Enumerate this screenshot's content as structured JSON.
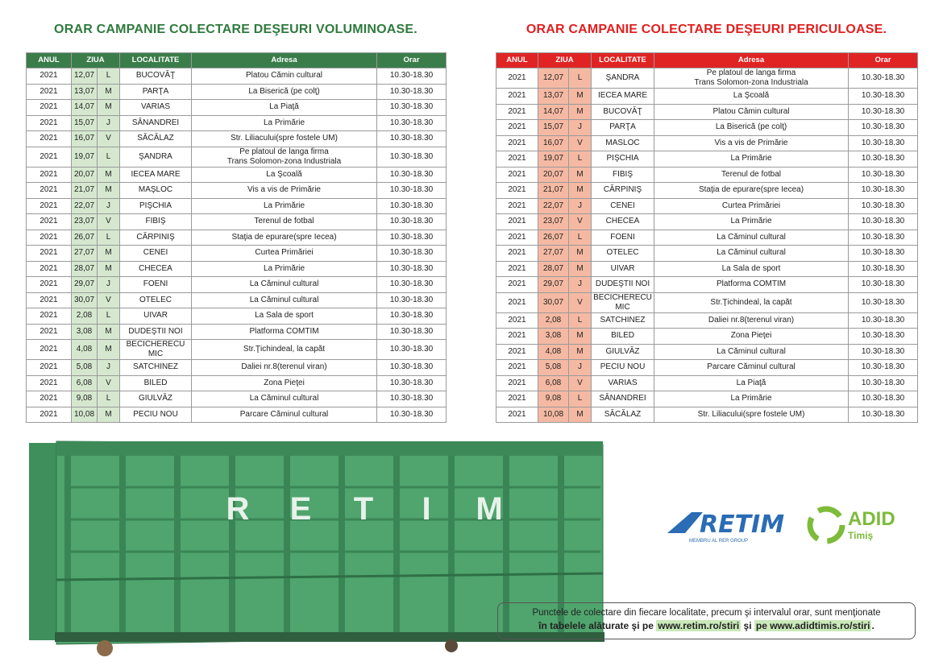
{
  "left": {
    "title": "ORAR CAMPANIE COLECTARE DEŞEURI VOLUMINOASE.",
    "headers": [
      "ANUL",
      "ZIUA",
      "LOCALITATE",
      "Adresa",
      "Orar"
    ],
    "rows": [
      [
        "2021",
        "12,07",
        "L",
        "BUCOVĂŢ",
        "Platou Cămin cultural",
        "10.30-18.30"
      ],
      [
        "2021",
        "13,07",
        "M",
        "PARŢA",
        "La Biserică (pe colţ)",
        "10.30-18.30"
      ],
      [
        "2021",
        "14,07",
        "M",
        "VARIAS",
        "La Piaţă",
        "10.30-18.30"
      ],
      [
        "2021",
        "15,07",
        "J",
        "SÂNANDREI",
        "La Primărie",
        "10.30-18.30"
      ],
      [
        "2021",
        "16,07",
        "V",
        "SĂCĂLAZ",
        "Str. Liliacului(spre fostele UM)",
        "10.30-18.30"
      ],
      [
        "2021",
        "19,07",
        "L",
        "ŞANDRA",
        "Pe platoul de langa firma\nTrans Solomon-zona Industriala",
        "10.30-18.30"
      ],
      [
        "2021",
        "20,07",
        "M",
        "IECEA MARE",
        "La Şcoală",
        "10.30-18.30"
      ],
      [
        "2021",
        "21,07",
        "M",
        "MAŞLOC",
        "Vis a vis de Primărie",
        "10.30-18.30"
      ],
      [
        "2021",
        "22,07",
        "J",
        "PIŞCHIA",
        "La Primărie",
        "10.30-18.30"
      ],
      [
        "2021",
        "23,07",
        "V",
        "FIBIŞ",
        "Terenul de fotbal",
        "10.30-18.30"
      ],
      [
        "2021",
        "26,07",
        "L",
        "CĂRPINIŞ",
        "Staţia de epurare(spre Iecea)",
        "10.30-18.30"
      ],
      [
        "2021",
        "27,07",
        "M",
        "CENEI",
        "Curtea Primăriei",
        "10.30-18.30"
      ],
      [
        "2021",
        "28,07",
        "M",
        "CHECEA",
        "La Primărie",
        "10.30-18.30"
      ],
      [
        "2021",
        "29,07",
        "J",
        "FOENI",
        "La Căminul cultural",
        "10.30-18.30"
      ],
      [
        "2021",
        "30,07",
        "V",
        "OTELEC",
        "La Căminul cultural",
        "10.30-18.30"
      ],
      [
        "2021",
        "2,08",
        "L",
        "UIVAR",
        "La Sala de sport",
        "10.30-18.30"
      ],
      [
        "2021",
        "3,08",
        "M",
        "DUDEŞTII NOI",
        "Platforma COMTIM",
        "10.30-18.30"
      ],
      [
        "2021",
        "4,08",
        "M",
        "BECICHERECU\nMIC",
        "Str.Ţichindeal, la capăt",
        "10.30-18.30"
      ],
      [
        "2021",
        "5,08",
        "J",
        "SATCHINEZ",
        "Daliei nr.8(terenul viran)",
        "10.30-18.30"
      ],
      [
        "2021",
        "6,08",
        "V",
        "BILED",
        "Zona Pieţei",
        "10.30-18.30"
      ],
      [
        "2021",
        "9,08",
        "L",
        "GIULVĂZ",
        "La Căminul cultural",
        "10.30-18.30"
      ],
      [
        "2021",
        "10,08",
        "M",
        "PECIU NOU",
        "Parcare Căminul cultural",
        "10.30-18.30"
      ]
    ]
  },
  "right": {
    "title": "ORAR CAMPANIE COLECTARE DEŞEURI PERICULOASE.",
    "headers": [
      "ANUL",
      "ZIUA",
      "LOCALITATE",
      "Adresa",
      "Orar"
    ],
    "rows": [
      [
        "2021",
        "12,07",
        "L",
        "ŞANDRA",
        "Pe platoul de langa firma\nTrans Solomon-zona Industriala",
        "10.30-18.30"
      ],
      [
        "2021",
        "13,07",
        "M",
        "IECEA MARE",
        "La Şcoală",
        "10.30-18.30"
      ],
      [
        "2021",
        "14,07",
        "M",
        "BUCOVĂŢ",
        "Platou Cămin cultural",
        "10.30-18.30"
      ],
      [
        "2021",
        "15,07",
        "J",
        "PARŢA",
        "La Biserică (pe colţ)",
        "10.30-18.30"
      ],
      [
        "2021",
        "16,07",
        "V",
        "MASLOC",
        "Vis a vis de Primărie",
        "10.30-18.30"
      ],
      [
        "2021",
        "19,07",
        "L",
        "PIŞCHIA",
        "La Primărie",
        "10.30-18.30"
      ],
      [
        "2021",
        "20,07",
        "M",
        "FIBIŞ",
        "Terenul de fotbal",
        "10.30-18.30"
      ],
      [
        "2021",
        "21,07",
        "M",
        "CĂRPINIŞ",
        "Staţia de epurare(spre Iecea)",
        "10.30-18.30"
      ],
      [
        "2021",
        "22,07",
        "J",
        "CENEI",
        "Curtea Primăriei",
        "10.30-18.30"
      ],
      [
        "2021",
        "23,07",
        "V",
        "CHECEA",
        "La Primărie",
        "10.30-18.30"
      ],
      [
        "2021",
        "26,07",
        "L",
        "FOENI",
        "La Căminul cultural",
        "10.30-18.30"
      ],
      [
        "2021",
        "27,07",
        "M",
        "OTELEC",
        "La Căminul cultural",
        "10.30-18.30"
      ],
      [
        "2021",
        "28,07",
        "M",
        "UIVAR",
        "La Sala de sport",
        "10.30-18.30"
      ],
      [
        "2021",
        "29,07",
        "J",
        "DUDEŞTII NOI",
        "Platforma COMTIM",
        "10.30-18.30"
      ],
      [
        "2021",
        "30,07",
        "V",
        "BECICHERECU\nMIC",
        "Str.Ţichindeal, la capăt",
        "10.30-18.30"
      ],
      [
        "2021",
        "2,08",
        "L",
        "SATCHINEZ",
        "Daliei nr.8(terenul viran)",
        "10.30-18.30"
      ],
      [
        "2021",
        "3,08",
        "M",
        "BILED",
        "Zona Pieţei",
        "10.30-18.30"
      ],
      [
        "2021",
        "4,08",
        "M",
        "GIULVĂZ",
        "La Căminul cultural",
        "10.30-18.30"
      ],
      [
        "2021",
        "5,08",
        "J",
        "PECIU NOU",
        "Parcare Căminul cultural",
        "10.30-18.30"
      ],
      [
        "2021",
        "6,08",
        "V",
        "VARIAS",
        "La Piaţă",
        "10.30-18.30"
      ],
      [
        "2021",
        "9,08",
        "L",
        "SÂNANDREI",
        "La Primărie",
        "10.30-18.30"
      ],
      [
        "2021",
        "10,08",
        "M",
        "SĂCĂLAZ",
        "Str. Liliacului(spre fostele UM)",
        "10.30-18.30"
      ]
    ]
  },
  "container_letters": [
    "R",
    "E",
    "T",
    "I",
    "M"
  ],
  "logos": {
    "retim": "RETIM",
    "retim_sub": "MEMBRU AL RER GROUP",
    "adid": "ADID",
    "adid_sub": "Timiş"
  },
  "footer": {
    "line1": "Punctele de colectare din fiecare localitate, precum şi intervalul orar, sunt menţionate",
    "line2": [
      "în tabelele alăturate şi pe",
      "www.retim.ro/stiri",
      "şi",
      "pe www.adidtimis.ro/stiri",
      "."
    ]
  }
}
